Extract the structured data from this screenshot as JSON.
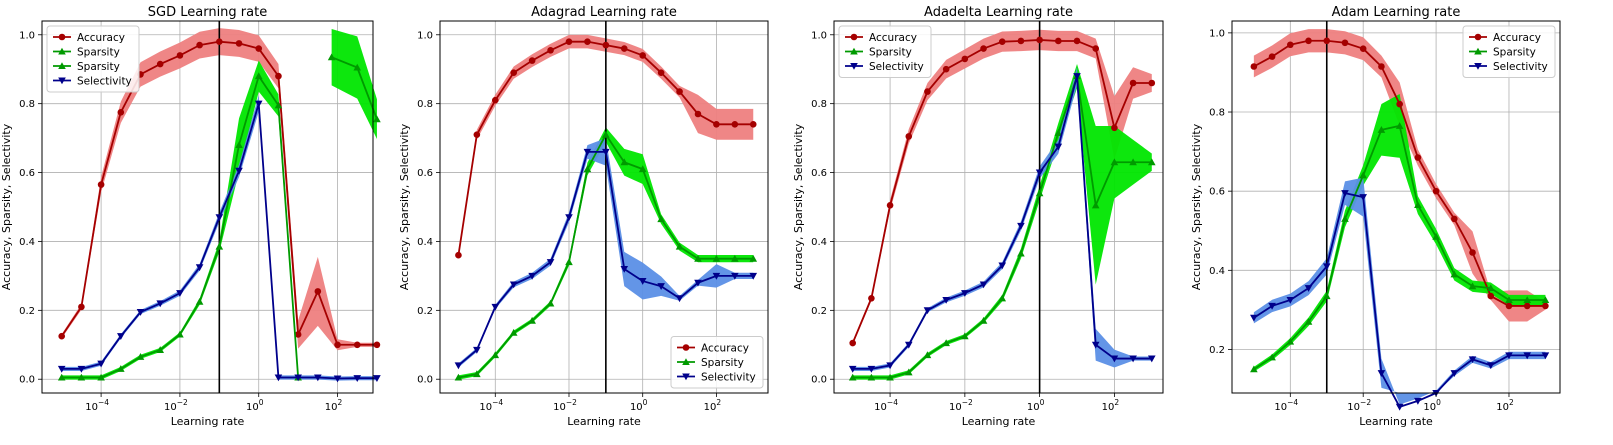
{
  "figure": {
    "colors": {
      "accuracy": "#a50000",
      "accuracy_band": "#ee7f7f",
      "sparsity": "#009a00",
      "sparsity_band": "#00e600",
      "selectivity": "#00008b",
      "selectivity_band": "#5b8fe6",
      "vline": "#000000",
      "grid": "#b0b0b0"
    }
  },
  "chart_data": [
    {
      "type": "line",
      "title": "SGD Learning rate",
      "xlabel": "Learning rate",
      "ylabel": "Accuracy, Sparsity, Selectivity",
      "xscale": "log",
      "xlim": [
        -5.5,
        2.9
      ],
      "ylim": [
        -0.04,
        1.04
      ],
      "xticks": [
        {
          "v": -4,
          "base": "10",
          "exp": "−4"
        },
        {
          "v": -2,
          "base": "10",
          "exp": "−2"
        },
        {
          "v": 0,
          "base": "10",
          "exp": "0"
        },
        {
          "v": 2,
          "base": "10",
          "exp": "2"
        }
      ],
      "yticks": [
        "0.0",
        "0.2",
        "0.4",
        "0.6",
        "0.8",
        "1.0"
      ],
      "grid": true,
      "vline_log10_x": -1,
      "legend_position": "top-left",
      "legend": [
        "Accuracy",
        "Sparsity",
        "Sparsity",
        "Selectivity"
      ],
      "series": [
        {
          "name": "Accuracy",
          "key": "accuracy",
          "marker": "circle",
          "log10_x": [
            -5,
            -4.5,
            -4,
            -3.5,
            -3,
            -2.5,
            -2,
            -1.5,
            -1,
            -0.5,
            0,
            0.5,
            1,
            1.5,
            2,
            2.5,
            3
          ],
          "y": [
            0.125,
            0.21,
            0.565,
            0.775,
            0.885,
            0.915,
            0.94,
            0.97,
            0.98,
            0.975,
            0.96,
            0.88,
            0.13,
            0.255,
            0.1,
            0.1,
            0.1
          ]
        },
        {
          "name": "Sparsity",
          "key": "sparsity",
          "marker": "triangle-up",
          "log10_x": [
            -5,
            -4.5,
            -4,
            -3.5,
            -3,
            -2.5,
            -2,
            -1.5,
            -1,
            -0.5,
            0,
            0.5,
            1
          ],
          "y": [
            0.005,
            0.005,
            0.005,
            0.03,
            0.065,
            0.085,
            0.13,
            0.225,
            0.385,
            0.68,
            0.88,
            0.795,
            0.005
          ]
        },
        {
          "name": "Sparsity",
          "key": "sparsity",
          "marker": "triangle-up",
          "log10_x": [
            1.85,
            2.5,
            3
          ],
          "y": [
            0.935,
            0.905,
            0.755
          ]
        },
        {
          "name": "Selectivity",
          "key": "selectivity",
          "marker": "triangle-down",
          "log10_x": [
            -5,
            -4.5,
            -4,
            -3.5,
            -3,
            -2.5,
            -2,
            -1.5,
            -1,
            -0.5,
            0,
            0.5,
            1,
            1.5,
            2,
            2.5,
            3
          ],
          "y": [
            0.03,
            0.03,
            0.045,
            0.125,
            0.195,
            0.22,
            0.25,
            0.325,
            0.47,
            0.605,
            0.8,
            0.005,
            0.005,
            0.005,
            0.002,
            0.003,
            0.003
          ]
        }
      ]
    },
    {
      "type": "line",
      "title": "Adagrad Learning rate",
      "xlabel": "Learning rate",
      "ylabel": "Accuracy, Sparsity, Selectivity",
      "xscale": "log",
      "xlim": [
        -5.5,
        3.4
      ],
      "ylim": [
        -0.04,
        1.04
      ],
      "xticks": [
        {
          "v": -4,
          "base": "10",
          "exp": "−4"
        },
        {
          "v": -2,
          "base": "10",
          "exp": "−2"
        },
        {
          "v": 0,
          "base": "10",
          "exp": "0"
        },
        {
          "v": 2,
          "base": "10",
          "exp": "2"
        }
      ],
      "yticks": [
        "0.0",
        "0.2",
        "0.4",
        "0.6",
        "0.8",
        "1.0"
      ],
      "grid": true,
      "vline_log10_x": -1,
      "legend_position": "bottom-right",
      "legend": [
        "Accuracy",
        "Sparsity",
        "Selectivity"
      ],
      "series": [
        {
          "name": "Accuracy",
          "key": "accuracy",
          "marker": "circle",
          "log10_x": [
            -5,
            -4.5,
            -4,
            -3.5,
            -3,
            -2.5,
            -2,
            -1.5,
            -1,
            -0.5,
            0,
            0.5,
            1,
            1.5,
            2,
            2.5,
            3
          ],
          "y": [
            0.36,
            0.71,
            0.81,
            0.89,
            0.925,
            0.955,
            0.98,
            0.98,
            0.97,
            0.96,
            0.94,
            0.89,
            0.835,
            0.77,
            0.74,
            0.74,
            0.74
          ]
        },
        {
          "name": "Sparsity",
          "key": "sparsity",
          "marker": "triangle-up",
          "log10_x": [
            -5,
            -4.5,
            -4,
            -3.5,
            -3,
            -2.5,
            -2,
            -1.5,
            -1,
            -0.5,
            0,
            0.5,
            1,
            1.5,
            2,
            2.5,
            3
          ],
          "y": [
            0.005,
            0.015,
            0.07,
            0.135,
            0.17,
            0.22,
            0.34,
            0.61,
            0.71,
            0.63,
            0.61,
            0.465,
            0.385,
            0.35,
            0.35,
            0.35,
            0.35
          ]
        },
        {
          "name": "Selectivity",
          "key": "selectivity",
          "marker": "triangle-down",
          "log10_x": [
            -5,
            -4.5,
            -4,
            -3.5,
            -3,
            -2.5,
            -2,
            -1.5,
            -1,
            -0.5,
            0,
            0.5,
            1,
            1.5,
            2,
            2.5,
            3
          ],
          "y": [
            0.04,
            0.085,
            0.21,
            0.275,
            0.3,
            0.34,
            0.47,
            0.66,
            0.66,
            0.32,
            0.285,
            0.27,
            0.235,
            0.28,
            0.3,
            0.3,
            0.3
          ]
        }
      ]
    },
    {
      "type": "line",
      "title": "Adadelta Learning rate",
      "xlabel": "Learning rate",
      "ylabel": "Accuracy, Sparsity, Selectivity",
      "xscale": "log",
      "xlim": [
        -5.5,
        3.3
      ],
      "ylim": [
        -0.04,
        1.04
      ],
      "xticks": [
        {
          "v": -4,
          "base": "10",
          "exp": "−4"
        },
        {
          "v": -2,
          "base": "10",
          "exp": "−2"
        },
        {
          "v": 0,
          "base": "10",
          "exp": "0"
        },
        {
          "v": 2,
          "base": "10",
          "exp": "2"
        }
      ],
      "yticks": [
        "0.0",
        "0.2",
        "0.4",
        "0.6",
        "0.8",
        "1.0"
      ],
      "grid": true,
      "vline_log10_x": 0,
      "legend_position": "top-left",
      "legend": [
        "Accuracy",
        "Sparsity",
        "Selectivity"
      ],
      "series": [
        {
          "name": "Accuracy",
          "key": "accuracy",
          "marker": "circle",
          "log10_x": [
            -5,
            -4.5,
            -4,
            -3.5,
            -3,
            -2.5,
            -2,
            -1.5,
            -1,
            -0.5,
            0,
            0.5,
            1,
            1.5,
            2,
            2.5,
            3
          ],
          "y": [
            0.105,
            0.235,
            0.505,
            0.705,
            0.835,
            0.9,
            0.93,
            0.96,
            0.98,
            0.982,
            0.985,
            0.982,
            0.982,
            0.96,
            0.73,
            0.86,
            0.86
          ]
        },
        {
          "name": "Sparsity",
          "key": "sparsity",
          "marker": "triangle-up",
          "log10_x": [
            -5,
            -4.5,
            -4,
            -3.5,
            -3,
            -2.5,
            -2,
            -1.5,
            -1,
            -0.5,
            0,
            0.5,
            1,
            1.5,
            2,
            2.5,
            3
          ],
          "y": [
            0.005,
            0.005,
            0.005,
            0.02,
            0.07,
            0.105,
            0.125,
            0.17,
            0.235,
            0.365,
            0.54,
            0.715,
            0.88,
            0.505,
            0.63,
            0.63,
            0.63
          ]
        },
        {
          "name": "Selectivity",
          "key": "selectivity",
          "marker": "triangle-down",
          "log10_x": [
            -5,
            -4.5,
            -4,
            -3.5,
            -3,
            -2.5,
            -2,
            -1.5,
            -1,
            -0.5,
            0,
            0.5,
            1,
            1.5,
            2,
            2.5,
            3
          ],
          "y": [
            0.03,
            0.03,
            0.04,
            0.1,
            0.2,
            0.23,
            0.25,
            0.275,
            0.33,
            0.445,
            0.6,
            0.675,
            0.88,
            0.1,
            0.06,
            0.06,
            0.06
          ]
        }
      ]
    },
    {
      "type": "line",
      "title": "Adam Learning rate",
      "xlabel": "Learning rate",
      "ylabel": "Accuracy, Sparsity, Selectivity",
      "xscale": "log",
      "xlim": [
        -5.6,
        3.4
      ],
      "ylim": [
        0.09,
        1.03
      ],
      "xticks": [
        {
          "v": -4,
          "base": "10",
          "exp": "−4"
        },
        {
          "v": -2,
          "base": "10",
          "exp": "−2"
        },
        {
          "v": 0,
          "base": "10",
          "exp": "0"
        },
        {
          "v": 2,
          "base": "10",
          "exp": "2"
        }
      ],
      "yticks": [
        "0.2",
        "0.4",
        "0.6",
        "0.8",
        "1.0"
      ],
      "grid": true,
      "vline_log10_x": -3,
      "legend_position": "top-right",
      "legend": [
        "Accuracy",
        "Sparsity",
        "Selectivity"
      ],
      "series": [
        {
          "name": "Accuracy",
          "key": "accuracy",
          "marker": "circle",
          "log10_x": [
            -5,
            -4.5,
            -4,
            -3.5,
            -3,
            -2.5,
            -2,
            -1.5,
            -1,
            -0.5,
            0,
            0.5,
            1,
            1.5,
            2,
            2.5,
            3
          ],
          "y": [
            0.915,
            0.94,
            0.97,
            0.98,
            0.98,
            0.975,
            0.96,
            0.915,
            0.82,
            0.685,
            0.6,
            0.53,
            0.445,
            0.335,
            0.31,
            0.31,
            0.31
          ]
        },
        {
          "name": "Sparsity",
          "key": "sparsity",
          "marker": "triangle-up",
          "log10_x": [
            -5,
            -4.5,
            -4,
            -3.5,
            -3,
            -2.5,
            -2,
            -1.5,
            -1,
            -0.5,
            0,
            0.5,
            1,
            1.5,
            2,
            2.5,
            3
          ],
          "y": [
            0.15,
            0.18,
            0.22,
            0.27,
            0.335,
            0.53,
            0.64,
            0.755,
            0.765,
            0.565,
            0.485,
            0.39,
            0.36,
            0.355,
            0.325,
            0.325,
            0.325
          ]
        },
        {
          "name": "Selectivity",
          "key": "selectivity",
          "marker": "triangle-down",
          "log10_x": [
            -5,
            -4.5,
            -4,
            -3.5,
            -3,
            -2.5,
            -2,
            -1.5,
            -1,
            -0.5,
            0,
            0.5,
            1,
            1.5,
            2,
            2.5,
            3
          ],
          "y": [
            0.28,
            0.31,
            0.325,
            0.355,
            0.41,
            0.595,
            0.585,
            0.14,
            0.055,
            0.07,
            0.09,
            0.14,
            0.175,
            0.16,
            0.185,
            0.185,
            0.185
          ]
        }
      ]
    }
  ]
}
